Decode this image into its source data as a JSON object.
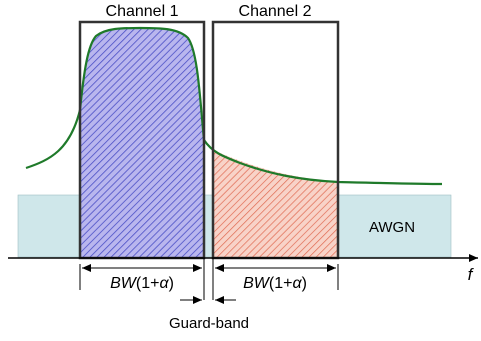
{
  "channels": [
    {
      "label": "Channel 1"
    },
    {
      "label": "Channel 2"
    }
  ],
  "noise": {
    "label": "AWGN"
  },
  "axis": {
    "label": "f"
  },
  "bandwidth": [
    {
      "prefix": "BW",
      "suffix": "(1+",
      "alpha": "α",
      "close": ")"
    },
    {
      "prefix": "BW",
      "suffix": "(1+",
      "alpha": "α",
      "close": ")"
    }
  ],
  "guard_band": {
    "label": "Guard-band"
  },
  "colors": {
    "noise_fill": "#cfe7ea",
    "ch1_hatch": "#4b4fc6",
    "ch1_fill": "#b9b6ee",
    "ch2_hatch": "#e06a52",
    "ch2_fill": "#f8d3c8",
    "spectrum_curve": "#1f7a2a",
    "box_stroke": "#333333"
  }
}
